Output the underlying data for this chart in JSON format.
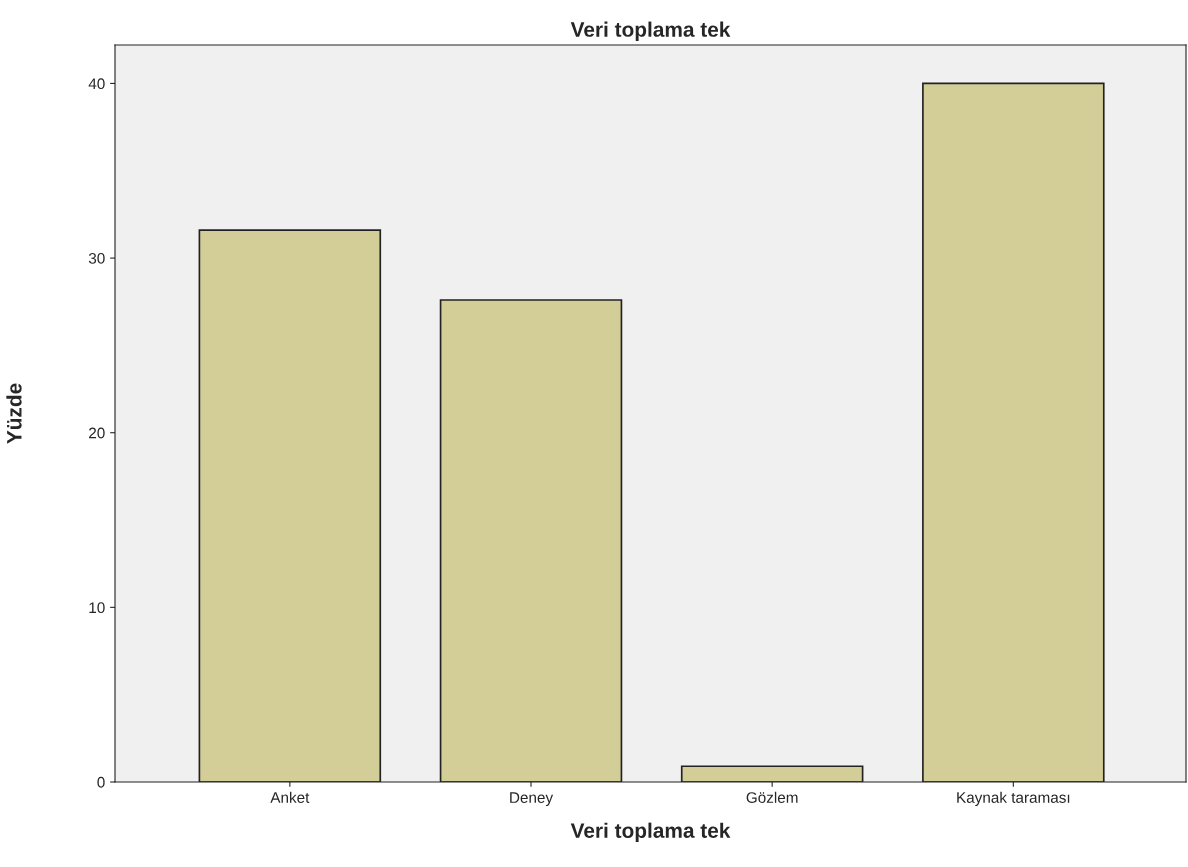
{
  "chart_data": {
    "type": "bar",
    "title": "Veri toplama tek",
    "xlabel": "Veri toplama tek",
    "ylabel": "Yüzde",
    "categories": [
      "Anket",
      "Deney",
      "Gözlem",
      "Kaynak taraması"
    ],
    "values": [
      31.6,
      27.6,
      0.9,
      40.0
    ],
    "color": "#d3ce97",
    "ylim": [
      0,
      42.2
    ],
    "yticks": [
      0,
      10,
      20,
      30,
      40
    ],
    "grid": false
  }
}
